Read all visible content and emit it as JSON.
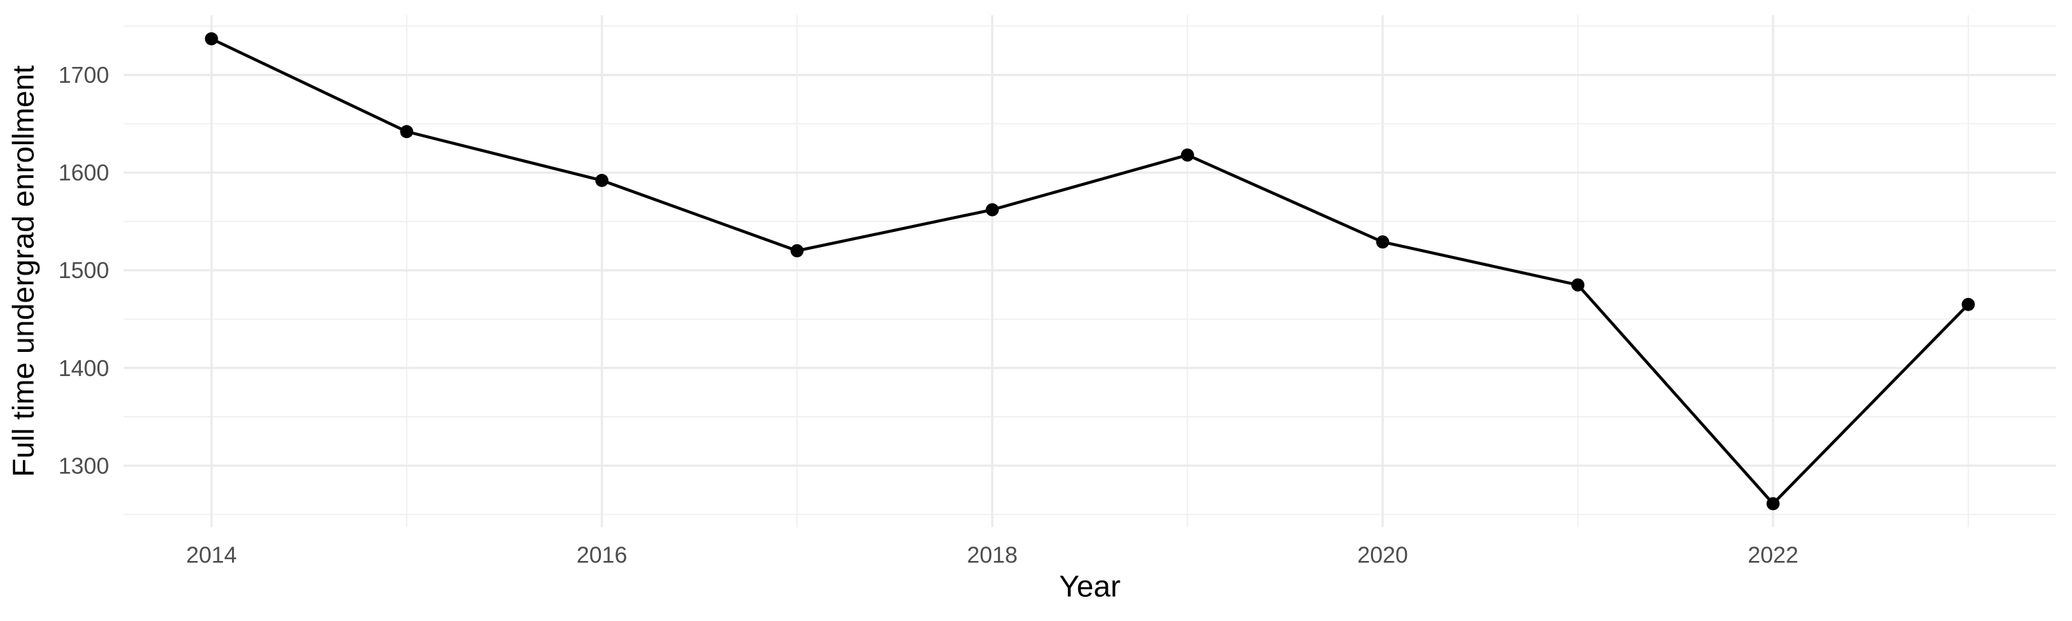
{
  "chart_data": {
    "type": "line",
    "title": "",
    "xlabel": "Year",
    "ylabel": "Full time undergrad enrollment",
    "x": [
      2014,
      2015,
      2016,
      2017,
      2018,
      2019,
      2020,
      2021,
      2022,
      2023
    ],
    "values": [
      1737,
      1642,
      1592,
      1520,
      1562,
      1618,
      1529,
      1485,
      1261,
      1465
    ],
    "series_name": "Full time undergrad enrollment",
    "x_major_ticks": [
      2014,
      2016,
      2018,
      2020,
      2022
    ],
    "x_minor_gridlines": [
      2015,
      2017,
      2019,
      2021,
      2023
    ],
    "y_major_ticks": [
      1300,
      1400,
      1500,
      1600,
      1700
    ],
    "y_minor_gridlines": [
      1250,
      1350,
      1450,
      1550,
      1650,
      1750
    ],
    "xlim": [
      2013.55,
      2023.45
    ],
    "ylim": [
      1237,
      1761.2
    ],
    "grid": "major-and-minor",
    "legend": "none",
    "marker": "filled-circle",
    "colors": {
      "background": "#ffffff",
      "line": "#000000",
      "point": "#000000",
      "grid_major": "#ebebeb",
      "grid_minor": "#f0f0f0",
      "tick_label": "#4d4d4d",
      "axis_title": "#000000"
    }
  }
}
